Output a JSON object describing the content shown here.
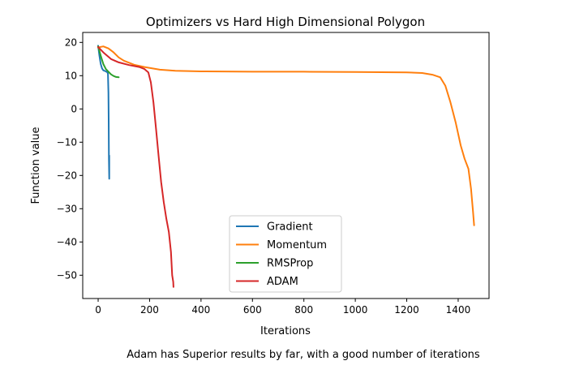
{
  "chart_data": {
    "type": "line",
    "title": "Optimizers vs Hard High Dimensional Polygon",
    "xlabel": "Iterations",
    "ylabel": "Function value",
    "xlim": [
      -60,
      1520
    ],
    "ylim": [
      -57,
      23
    ],
    "xticks": [
      0,
      200,
      400,
      600,
      800,
      1000,
      1200,
      1400
    ],
    "yticks": [
      20,
      10,
      0,
      -10,
      -20,
      -30,
      -40,
      -50
    ],
    "grid": false,
    "legend_position": "lower center",
    "caption": "Adam has Superior results by far, with a good number of iterations",
    "series": [
      {
        "name": "Gradient",
        "color": "#1f77b4",
        "points": [
          [
            0,
            19
          ],
          [
            5,
            16
          ],
          [
            10,
            13.5
          ],
          [
            15,
            12.2
          ],
          [
            20,
            11.6
          ],
          [
            30,
            11.3
          ],
          [
            36,
            11.0
          ],
          [
            38,
            10.6
          ],
          [
            40,
            5
          ],
          [
            41,
            -3
          ],
          [
            42,
            -15
          ],
          [
            43,
            -21
          ],
          [
            43,
            -14
          ]
        ]
      },
      {
        "name": "Momentum",
        "color": "#ff7f0e",
        "points": [
          [
            0,
            18.5
          ],
          [
            20,
            18.8
          ],
          [
            40,
            18.2
          ],
          [
            60,
            17
          ],
          [
            80,
            15.5
          ],
          [
            100,
            14.5
          ],
          [
            140,
            13.3
          ],
          [
            180,
            12.6
          ],
          [
            240,
            11.8
          ],
          [
            300,
            11.5
          ],
          [
            400,
            11.3
          ],
          [
            600,
            11.2
          ],
          [
            800,
            11.2
          ],
          [
            1000,
            11.1
          ],
          [
            1200,
            11.0
          ],
          [
            1260,
            10.8
          ],
          [
            1300,
            10.3
          ],
          [
            1330,
            9.5
          ],
          [
            1350,
            7
          ],
          [
            1370,
            2
          ],
          [
            1390,
            -4
          ],
          [
            1410,
            -11
          ],
          [
            1425,
            -15
          ],
          [
            1440,
            -18
          ],
          [
            1450,
            -24
          ],
          [
            1458,
            -31
          ],
          [
            1462,
            -35
          ]
        ]
      },
      {
        "name": "RMSProp",
        "color": "#2ca02c",
        "points": [
          [
            0,
            18.8
          ],
          [
            10,
            16
          ],
          [
            20,
            13.5
          ],
          [
            30,
            12
          ],
          [
            40,
            11.2
          ],
          [
            50,
            10.4
          ],
          [
            60,
            9.9
          ],
          [
            70,
            9.6
          ],
          [
            80,
            9.5
          ]
        ]
      },
      {
        "name": "ADAM",
        "color": "#d62728",
        "points": [
          [
            0,
            18.6
          ],
          [
            20,
            17
          ],
          [
            50,
            15
          ],
          [
            80,
            14
          ],
          [
            120,
            13.2
          ],
          [
            160,
            12.6
          ],
          [
            180,
            12
          ],
          [
            195,
            11
          ],
          [
            205,
            8
          ],
          [
            215,
            2
          ],
          [
            225,
            -6
          ],
          [
            235,
            -14
          ],
          [
            245,
            -22
          ],
          [
            255,
            -28
          ],
          [
            265,
            -33
          ],
          [
            275,
            -37
          ],
          [
            283,
            -43
          ],
          [
            288,
            -50
          ],
          [
            292,
            -52
          ],
          [
            293,
            -53.5
          ]
        ]
      }
    ]
  }
}
